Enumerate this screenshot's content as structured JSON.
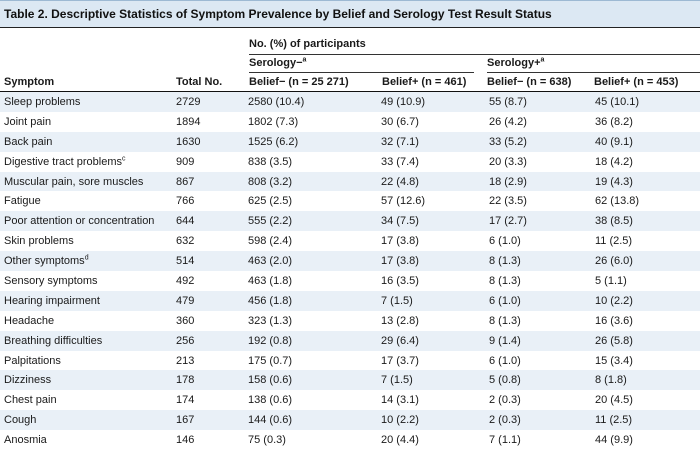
{
  "title": "Table 2. Descriptive Statistics of Symptom Prevalence by Belief and Serology Test Result Status",
  "header": {
    "group_label": "No. (%) of participants",
    "serology_neg": "Serology−",
    "serology_neg_sup": "a",
    "serology_pos": "Serology+",
    "serology_pos_sup": "a",
    "col_symptom": "Symptom",
    "col_total": "Total No.",
    "col_neg_belief_neg": "Belief− (n = 25 271)",
    "col_neg_belief_pos": "Belief+ (n = 461)",
    "col_pos_belief_neg": "Belief− (n = 638)",
    "col_pos_belief_pos": "Belief+ (n = 453)"
  },
  "rows": [
    {
      "symptom": "Sleep problems",
      "sup": "",
      "total": "2729",
      "sn_bn": "2580 (10.4)",
      "sn_bp": "49 (10.9)",
      "sp_bn": "55 (8.7)",
      "sp_bp": "45 (10.1)"
    },
    {
      "symptom": "Joint pain",
      "sup": "",
      "total": "1894",
      "sn_bn": "1802 (7.3)",
      "sn_bp": "30 (6.7)",
      "sp_bn": "26 (4.2)",
      "sp_bp": "36 (8.2)"
    },
    {
      "symptom": "Back pain",
      "sup": "",
      "total": "1630",
      "sn_bn": "1525 (6.2)",
      "sn_bp": "32 (7.1)",
      "sp_bn": "33 (5.2)",
      "sp_bp": "40 (9.1)"
    },
    {
      "symptom": "Digestive tract problems",
      "sup": "c",
      "total": "909",
      "sn_bn": "838 (3.5)",
      "sn_bp": "33 (7.4)",
      "sp_bn": "20 (3.3)",
      "sp_bp": "18 (4.2)"
    },
    {
      "symptom": "Muscular pain, sore muscles",
      "sup": "",
      "total": "867",
      "sn_bn": "808 (3.2)",
      "sn_bp": "22 (4.8)",
      "sp_bn": "18 (2.9)",
      "sp_bp": "19 (4.3)"
    },
    {
      "symptom": "Fatigue",
      "sup": "",
      "total": "766",
      "sn_bn": "625 (2.5)",
      "sn_bp": "57 (12.6)",
      "sp_bn": "22 (3.5)",
      "sp_bp": "62 (13.8)"
    },
    {
      "symptom": "Poor attention or concentration",
      "sup": "",
      "total": "644",
      "sn_bn": "555 (2.2)",
      "sn_bp": "34 (7.5)",
      "sp_bn": "17 (2.7)",
      "sp_bp": "38 (8.5)"
    },
    {
      "symptom": "Skin problems",
      "sup": "",
      "total": "632",
      "sn_bn": "598 (2.4)",
      "sn_bp": "17 (3.8)",
      "sp_bn": "6 (1.0)",
      "sp_bp": "11 (2.5)"
    },
    {
      "symptom": "Other symptoms",
      "sup": "d",
      "total": "514",
      "sn_bn": "463 (2.0)",
      "sn_bp": "17 (3.8)",
      "sp_bn": "8 (1.3)",
      "sp_bp": "26 (6.0)"
    },
    {
      "symptom": "Sensory symptoms",
      "sup": "",
      "total": "492",
      "sn_bn": "463 (1.8)",
      "sn_bp": "16 (3.5)",
      "sp_bn": "8 (1.3)",
      "sp_bp": "5 (1.1)"
    },
    {
      "symptom": "Hearing impairment",
      "sup": "",
      "total": "479",
      "sn_bn": "456 (1.8)",
      "sn_bp": "7 (1.5)",
      "sp_bn": "6 (1.0)",
      "sp_bp": "10 (2.2)"
    },
    {
      "symptom": "Headache",
      "sup": "",
      "total": "360",
      "sn_bn": "323 (1.3)",
      "sn_bp": "13 (2.8)",
      "sp_bn": "8 (1.3)",
      "sp_bp": "16 (3.6)"
    },
    {
      "symptom": "Breathing difficulties",
      "sup": "",
      "total": "256",
      "sn_bn": "192 (0.8)",
      "sn_bp": "29 (6.4)",
      "sp_bn": "9 (1.4)",
      "sp_bp": "26 (5.8)"
    },
    {
      "symptom": "Palpitations",
      "sup": "",
      "total": "213",
      "sn_bn": "175 (0.7)",
      "sn_bp": "17 (3.7)",
      "sp_bn": "6 (1.0)",
      "sp_bp": "15 (3.4)"
    },
    {
      "symptom": "Dizziness",
      "sup": "",
      "total": "178",
      "sn_bn": "158 (0.6)",
      "sn_bp": "7 (1.5)",
      "sp_bn": "5 (0.8)",
      "sp_bp": "8 (1.8)"
    },
    {
      "symptom": "Chest pain",
      "sup": "",
      "total": "174",
      "sn_bn": "138 (0.6)",
      "sn_bp": "14 (3.1)",
      "sp_bn": "2 (0.3)",
      "sp_bp": "20 (4.5)"
    },
    {
      "symptom": "Cough",
      "sup": "",
      "total": "167",
      "sn_bn": "144 (0.6)",
      "sn_bp": "10 (2.2)",
      "sp_bn": "2 (0.3)",
      "sp_bp": "11 (2.5)"
    },
    {
      "symptom": "Anosmia",
      "sup": "",
      "total": "146",
      "sn_bn": "75 (0.3)",
      "sn_bp": "20 (4.4)",
      "sp_bn": "7 (1.1)",
      "sp_bp": "44 (9.9)"
    }
  ]
}
